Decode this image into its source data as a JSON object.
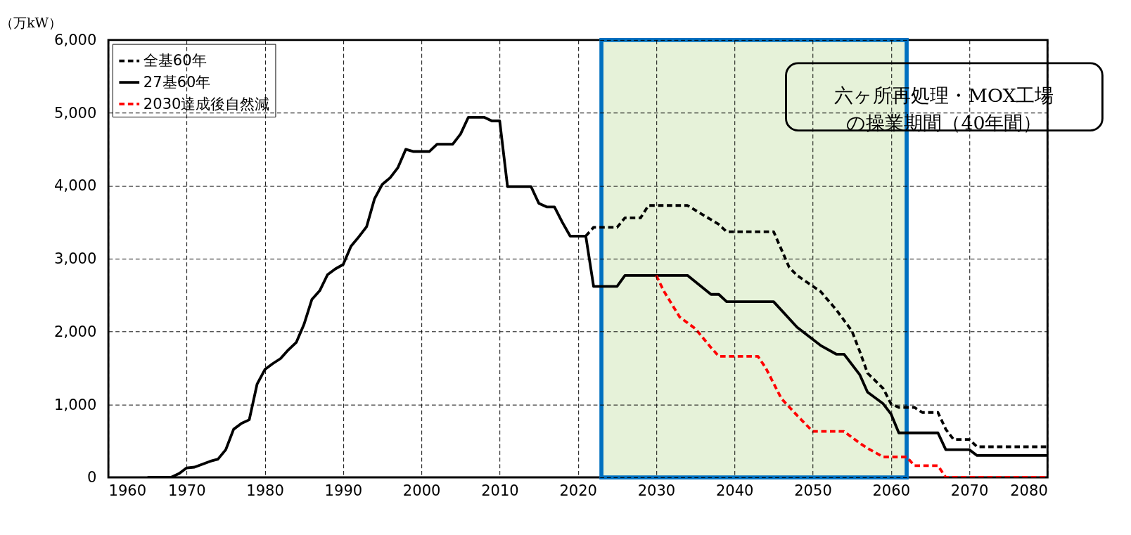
{
  "chart_data": {
    "type": "line",
    "ylabel": "（万kW）",
    "xlim": [
      1960,
      2080
    ],
    "xticks": [
      1960,
      1970,
      1980,
      1990,
      2000,
      2010,
      2020,
      2030,
      2040,
      2050,
      2060,
      2070,
      2080
    ],
    "ylim": [
      0,
      6000
    ],
    "yticks": [
      {
        "value": 0,
        "label": "0"
      },
      {
        "value": 1000,
        "label": "1,000"
      },
      {
        "value": 2000,
        "label": "2,000"
      },
      {
        "value": 3000,
        "label": "3,000"
      },
      {
        "value": 4000,
        "label": "4,000"
      },
      {
        "value": 5000,
        "label": "5,000"
      },
      {
        "value": 6000,
        "label": "6,000"
      }
    ],
    "grid": true,
    "legend": "top left",
    "bands": [
      {
        "axis": "x",
        "from": 2023,
        "to": 2062,
        "label": "六ヶ所再処理・MOX工場の操業期間（40年間）",
        "color": "#e6f2d9"
      }
    ],
    "series": [
      {
        "name": "全基60年",
        "color": "#000000",
        "line_style": "dashed",
        "x": [
          2021,
          2022,
          2025,
          2026,
          2028,
          2029,
          2034,
          2038,
          2039,
          2045,
          2047,
          2048,
          2051,
          2053,
          2055,
          2056,
          2057,
          2059,
          2060,
          2061,
          2063,
          2064,
          2066,
          2067,
          2068,
          2070,
          2071,
          2080
        ],
        "values": [
          3310,
          3430,
          3430,
          3560,
          3560,
          3730,
          3730,
          3470,
          3370,
          3370,
          2880,
          2770,
          2550,
          2300,
          2010,
          1730,
          1430,
          1220,
          1010,
          960,
          960,
          890,
          890,
          660,
          520,
          520,
          420,
          420
        ]
      },
      {
        "name": "27基60年",
        "color": "#000000",
        "line_style": "solid",
        "x": [
          1965,
          1966,
          1968,
          1969,
          1970,
          1971,
          1973,
          1974,
          1975,
          1976,
          1977,
          1978,
          1979,
          1980,
          1981,
          1982,
          1983,
          1984,
          1985,
          1986,
          1987,
          1988,
          1989,
          1990,
          1991,
          1992,
          1993,
          1994,
          1995,
          1996,
          1997,
          1998,
          1999,
          2001,
          2002,
          2004,
          2005,
          2006,
          2008,
          2009,
          2010,
          2011,
          2014,
          2015,
          2016,
          2017,
          2018,
          2019,
          2021,
          2022,
          2025,
          2026,
          2034,
          2037,
          2038,
          2039,
          2045,
          2048,
          2051,
          2053,
          2054,
          2056,
          2057,
          2059,
          2060,
          2061,
          2066,
          2067,
          2070,
          2071,
          2080
        ],
        "values": [
          0,
          0,
          0,
          50,
          130,
          140,
          220,
          250,
          380,
          660,
          740,
          790,
          1280,
          1480,
          1560,
          1630,
          1750,
          1850,
          2100,
          2440,
          2560,
          2780,
          2860,
          2920,
          3170,
          3300,
          3440,
          3820,
          4020,
          4110,
          4250,
          4500,
          4470,
          4470,
          4570,
          4570,
          4710,
          4940,
          4940,
          4890,
          4890,
          3990,
          3990,
          3760,
          3710,
          3710,
          3500,
          3310,
          3310,
          2620,
          2620,
          2770,
          2770,
          2510,
          2510,
          2410,
          2410,
          2060,
          1810,
          1690,
          1690,
          1410,
          1170,
          1010,
          870,
          610,
          610,
          380,
          380,
          300,
          300
        ]
      },
      {
        "name": "2030達成後自然減",
        "color": "#ff0000",
        "line_style": "dashed",
        "x": [
          2030,
          2031,
          2033,
          2035,
          2037,
          2038,
          2043,
          2044,
          2046,
          2048,
          2050,
          2054,
          2056,
          2057,
          2059,
          2062,
          2063,
          2066,
          2067,
          2080
        ],
        "values": [
          2770,
          2550,
          2200,
          2040,
          1780,
          1660,
          1660,
          1500,
          1080,
          850,
          630,
          630,
          470,
          400,
          280,
          280,
          160,
          160,
          0,
          0
        ]
      }
    ]
  }
}
